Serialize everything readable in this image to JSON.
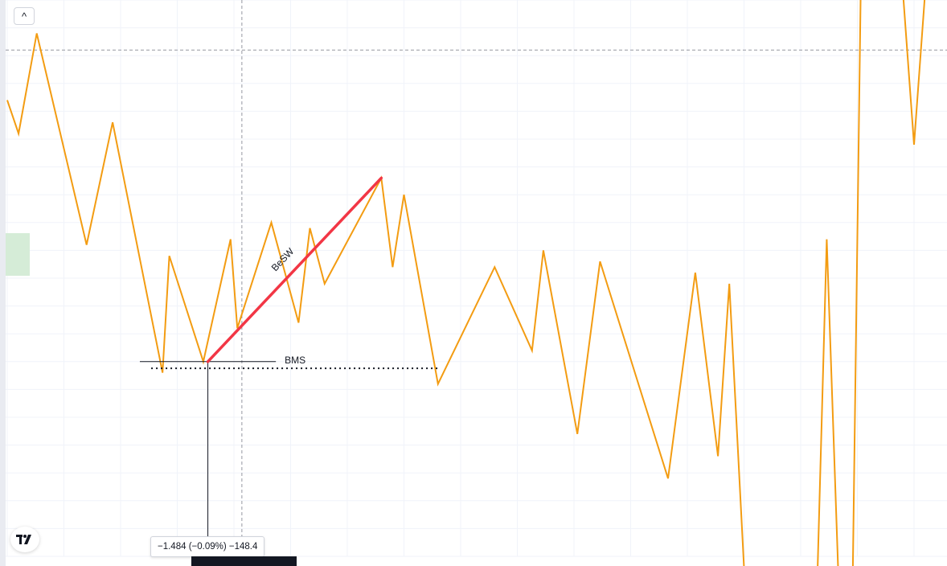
{
  "chart_data": {
    "type": "line",
    "title": "",
    "xlabel": "",
    "ylabel": "",
    "grid": true,
    "ylim": [
      0,
      100
    ],
    "series": [
      {
        "color": "#f39c12",
        "values": [
          [
            0.0,
            82
          ],
          [
            1.0,
            76
          ],
          [
            2.6,
            94
          ],
          [
            7.0,
            56
          ],
          [
            9.3,
            78
          ],
          [
            13.7,
            33
          ],
          [
            14.3,
            54
          ],
          [
            17.3,
            35
          ],
          [
            19.7,
            57
          ],
          [
            20.3,
            41
          ],
          [
            23.3,
            60
          ],
          [
            25.7,
            42
          ],
          [
            26.7,
            59
          ],
          [
            28.0,
            49
          ],
          [
            33.0,
            68
          ],
          [
            34.0,
            52
          ],
          [
            35.0,
            65
          ],
          [
            38.0,
            31
          ],
          [
            43.0,
            52
          ],
          [
            46.3,
            37
          ],
          [
            47.3,
            55
          ],
          [
            50.3,
            22
          ],
          [
            52.3,
            53
          ],
          [
            58.3,
            14
          ],
          [
            60.7,
            51
          ],
          [
            62.7,
            18
          ],
          [
            63.7,
            49
          ],
          [
            65.0,
            -2
          ],
          [
            71.5,
            -2
          ],
          [
            72.3,
            57
          ],
          [
            73.3,
            -2
          ],
          [
            74.6,
            -2
          ],
          [
            75.3,
            102
          ],
          [
            79.0,
            102
          ],
          [
            80.0,
            74
          ],
          [
            81.0,
            102
          ]
        ]
      }
    ],
    "annotations": {
      "besw": {
        "label": "BeSW",
        "color": "#f23645",
        "from": [
          17.7,
          35
        ],
        "to": [
          33.0,
          68
        ]
      },
      "bms": {
        "label": "BMS",
        "level": 35,
        "from_x": 11.7,
        "to_x": 23.7
      },
      "dotted_level": {
        "level": 33.8,
        "from_x": 12.7,
        "to_x": 38.0
      },
      "horizontal_price_line": {
        "level": 91
      },
      "vertical_cursor_x": 20.7,
      "vertical_measure_x": 17.7
    },
    "measure_label": "−1.484 (−0.09%) −148.4"
  },
  "ui": {
    "collapse_button_label": "^",
    "tv_logo_text": "17"
  }
}
